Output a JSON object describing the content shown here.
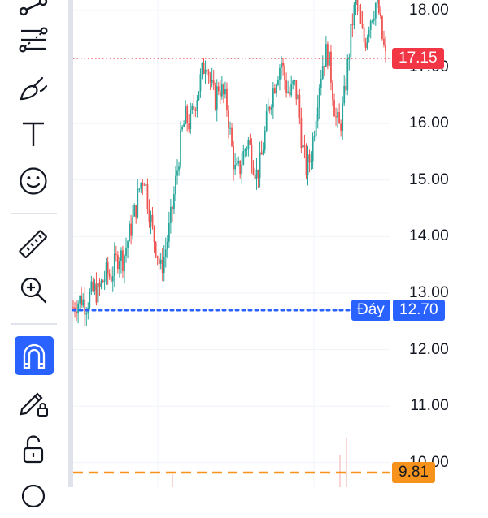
{
  "toolbar": {
    "items": [
      {
        "name": "trend-line-tool-icon"
      },
      {
        "name": "fib-retracement-tool-icon"
      },
      {
        "name": "brush-tool-icon"
      },
      {
        "name": "text-tool-icon",
        "glyph": "T"
      },
      {
        "name": "emoji-tool-icon"
      },
      {
        "name": "ruler-tool-icon"
      },
      {
        "name": "zoom-in-tool-icon"
      },
      {
        "name": "magnet-tool-icon",
        "active": true
      },
      {
        "name": "lock-drawings-icon"
      },
      {
        "name": "unlock-icon"
      }
    ]
  },
  "price_axis": {
    "ticks": [
      "18.00",
      "17.00",
      "16.00",
      "15.00",
      "14.00",
      "13.00",
      "12.00",
      "11.00",
      "10.00"
    ]
  },
  "lines": {
    "current_price": {
      "value": "17.15",
      "color": "#f23645"
    },
    "bottom": {
      "label": "Đáy",
      "value": "12.70",
      "color": "#2962ff"
    },
    "support": {
      "value": "9.81",
      "color": "#f7931a"
    }
  },
  "colors": {
    "up": "#26a69a",
    "down": "#ef5350",
    "accent": "#2962ff"
  },
  "chart_data": {
    "type": "candlestick",
    "series_closes": [
      12.75,
      12.85,
      12.9,
      12.8,
      12.95,
      13.05,
      13.0,
      13.2,
      13.35,
      13.3,
      13.5,
      13.7,
      13.6,
      13.9,
      14.2,
      14.5,
      14.9,
      15.1,
      14.6,
      14.1,
      13.8,
      13.4,
      13.7,
      14.1,
      14.6,
      15.2,
      15.8,
      16.1,
      16.0,
      16.3,
      16.6,
      16.9,
      17.2,
      16.7,
      16.4,
      16.7,
      16.5,
      16.3,
      15.6,
      15.1,
      15.2,
      15.5,
      15.7,
      15.4,
      15.1,
      15.3,
      15.8,
      16.3,
      16.6,
      16.9,
      17.1,
      16.7,
      16.5,
      16.7,
      16.4,
      15.6,
      15.2,
      15.4,
      16.0,
      16.7,
      17.1,
      17.3,
      16.8,
      16.1,
      15.9,
      16.4,
      17.1,
      17.8,
      18.2,
      17.7,
      17.4,
      17.8,
      18.0,
      18.2,
      17.6,
      17.15
    ],
    "y_axis_range": [
      9.7,
      18.2
    ]
  }
}
